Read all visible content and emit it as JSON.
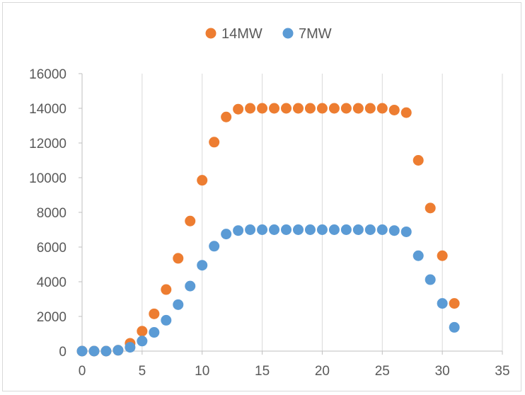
{
  "chart_data": {
    "type": "scatter",
    "title": "",
    "xlabel": "",
    "ylabel": "",
    "xlim": [
      0,
      35
    ],
    "ylim": [
      0,
      16000
    ],
    "x_ticks": [
      "0",
      "5",
      "10",
      "15",
      "20",
      "25",
      "30",
      "35"
    ],
    "y_ticks": [
      "0",
      "2000",
      "4000",
      "6000",
      "8000",
      "10000",
      "12000",
      "14000",
      "16000"
    ],
    "grid": "vertical",
    "legend_position": "top",
    "series": [
      {
        "name": "14MW",
        "color": "#ed7d31",
        "x": [
          0,
          1,
          2,
          3,
          4,
          5,
          6,
          7,
          8,
          9,
          10,
          11,
          12,
          13,
          14,
          15,
          16,
          17,
          18,
          19,
          20,
          21,
          22,
          23,
          24,
          25,
          26,
          27,
          28,
          29,
          30,
          31
        ],
        "y": [
          0,
          0,
          0,
          50,
          450,
          1150,
          2150,
          3550,
          5350,
          7500,
          9850,
          12050,
          13500,
          13950,
          14000,
          14000,
          14000,
          14000,
          14000,
          14000,
          14000,
          14000,
          14000,
          14000,
          14000,
          14000,
          13900,
          13750,
          11000,
          8250,
          5500,
          2750
        ]
      },
      {
        "name": "7MW",
        "color": "#5b9bd5",
        "x": [
          0,
          1,
          2,
          3,
          4,
          5,
          6,
          7,
          8,
          9,
          10,
          11,
          12,
          13,
          14,
          15,
          16,
          17,
          18,
          19,
          20,
          21,
          22,
          23,
          24,
          25,
          26,
          27,
          28,
          29,
          30,
          31
        ],
        "y": [
          0,
          0,
          0,
          50,
          220,
          580,
          1080,
          1780,
          2680,
          3750,
          4950,
          6050,
          6750,
          6950,
          7000,
          7000,
          7000,
          7000,
          7000,
          7000,
          7000,
          7000,
          7000,
          7000,
          7000,
          7000,
          6950,
          6880,
          5500,
          4120,
          2750,
          1370
        ]
      }
    ]
  }
}
